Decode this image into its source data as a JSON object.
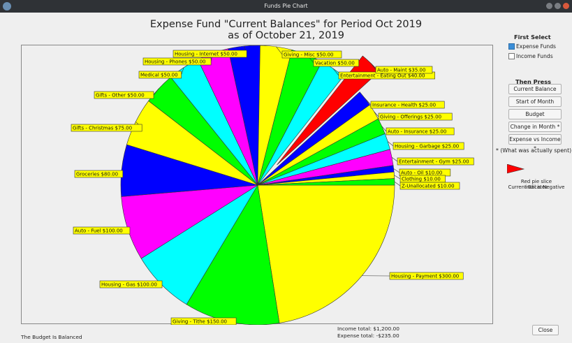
{
  "window": {
    "title": "Funds Pie Chart"
  },
  "chart_data": {
    "type": "pie",
    "title": "Expense Fund \"Current Balances\" for Period Oct 2019",
    "subtitle": "as of October 21, 2019",
    "start_angle": 0,
    "direction": "clockwise",
    "slices": [
      {
        "label": "Housing - Payment $300.00",
        "value": 300,
        "color": "#ffff00",
        "bx": 527,
        "by": 325
      },
      {
        "label": "Giving - Tithe $150.00",
        "value": 150,
        "color": "#00ff00",
        "bx": 214,
        "by": 390
      },
      {
        "label": "Housing - Gas $100.00",
        "value": 100,
        "color": "#00ffff",
        "bx": 112,
        "by": 337
      },
      {
        "label": "Auto - Fuel $100.00",
        "value": 100,
        "color": "#ff00ff",
        "bx": 74,
        "by": 260
      },
      {
        "label": "Groceries $80.00",
        "value": 80,
        "color": "#0000ff",
        "bx": 76,
        "by": 179
      },
      {
        "label": "Gifts - Christmas $75.00",
        "value": 75,
        "color": "#ffff00",
        "bx": 71,
        "by": 113
      },
      {
        "label": "Gifts - Other $50.00",
        "value": 50,
        "color": "#00ff00",
        "bx": 104,
        "by": 66
      },
      {
        "label": "Medical $50.00",
        "value": 50,
        "color": "#00ffff",
        "bx": 168,
        "by": 37
      },
      {
        "label": "Housing - Phones $50.00",
        "value": 50,
        "color": "#ff00ff",
        "bx": 174,
        "by": 18
      },
      {
        "label": "Housing - Internet $50.00",
        "value": 50,
        "color": "#0000ff",
        "bx": 217,
        "by": 7
      },
      {
        "label": "Giving - Misc $50.00",
        "value": 50,
        "color": "#ffff00",
        "bx": 373,
        "by": 8
      },
      {
        "label": "Vacation $50.00",
        "value": 50,
        "color": "#00ff00",
        "bx": 418,
        "by": 20
      },
      {
        "label": "Entertainment - Eating Out $40.00",
        "value": 40,
        "color": "#00ffff",
        "bx": 454,
        "by": 38
      },
      {
        "label": "Auto - Maint $35.00",
        "value": 35,
        "color": "#ff0000",
        "bx": 507,
        "by": 30,
        "negative": true,
        "explode": 40
      },
      {
        "label": "Insurance - Health $25.00",
        "value": 25,
        "color": "#0000ff",
        "bx": 500,
        "by": 80
      },
      {
        "label": "Giving - Offerings $25.00",
        "value": 25,
        "color": "#ffff00",
        "bx": 511,
        "by": 97
      },
      {
        "label": "Auto - Insurance $25.00",
        "value": 25,
        "color": "#00ff00",
        "bx": 522,
        "by": 118
      },
      {
        "label": "Housing - Garbage $25.00",
        "value": 25,
        "color": "#00ffff",
        "bx": 532,
        "by": 139
      },
      {
        "label": "Entertainment - Gym $25.00",
        "value": 25,
        "color": "#ff00ff",
        "bx": 538,
        "by": 161
      },
      {
        "label": "Auto - Oil $10.00",
        "value": 10,
        "color": "#0000ff",
        "bx": 541,
        "by": 177
      },
      {
        "label": "Clothing $10.00",
        "value": 10,
        "color": "#ffff00",
        "bx": 542,
        "by": 186
      },
      {
        "label": "Z-Unallocated $10.00",
        "value": 10,
        "color": "#00ff00",
        "bx": 542,
        "by": 196
      }
    ],
    "negative_slice_note": "Red pie slice indicates Current Bal is Negative"
  },
  "sidebar": {
    "first_select": "First Select",
    "expense_funds": "Expense Funds",
    "income_funds": "Income Funds",
    "then_press": "Then Press",
    "buttons": [
      "Current Balance",
      "Start of Month",
      "Budget",
      "Change in Month *",
      "Expense vs Income *"
    ],
    "footnote": "* (What was actually spent)",
    "legend_note_1": "Red pie slice indicates",
    "legend_note_2": "Current Bal is Negative"
  },
  "footer": {
    "status": "The Budget Is Balanced",
    "income_total": "Income total: $1,200.00",
    "expense_total": "Expense total: -$235.00",
    "close": "Close"
  }
}
